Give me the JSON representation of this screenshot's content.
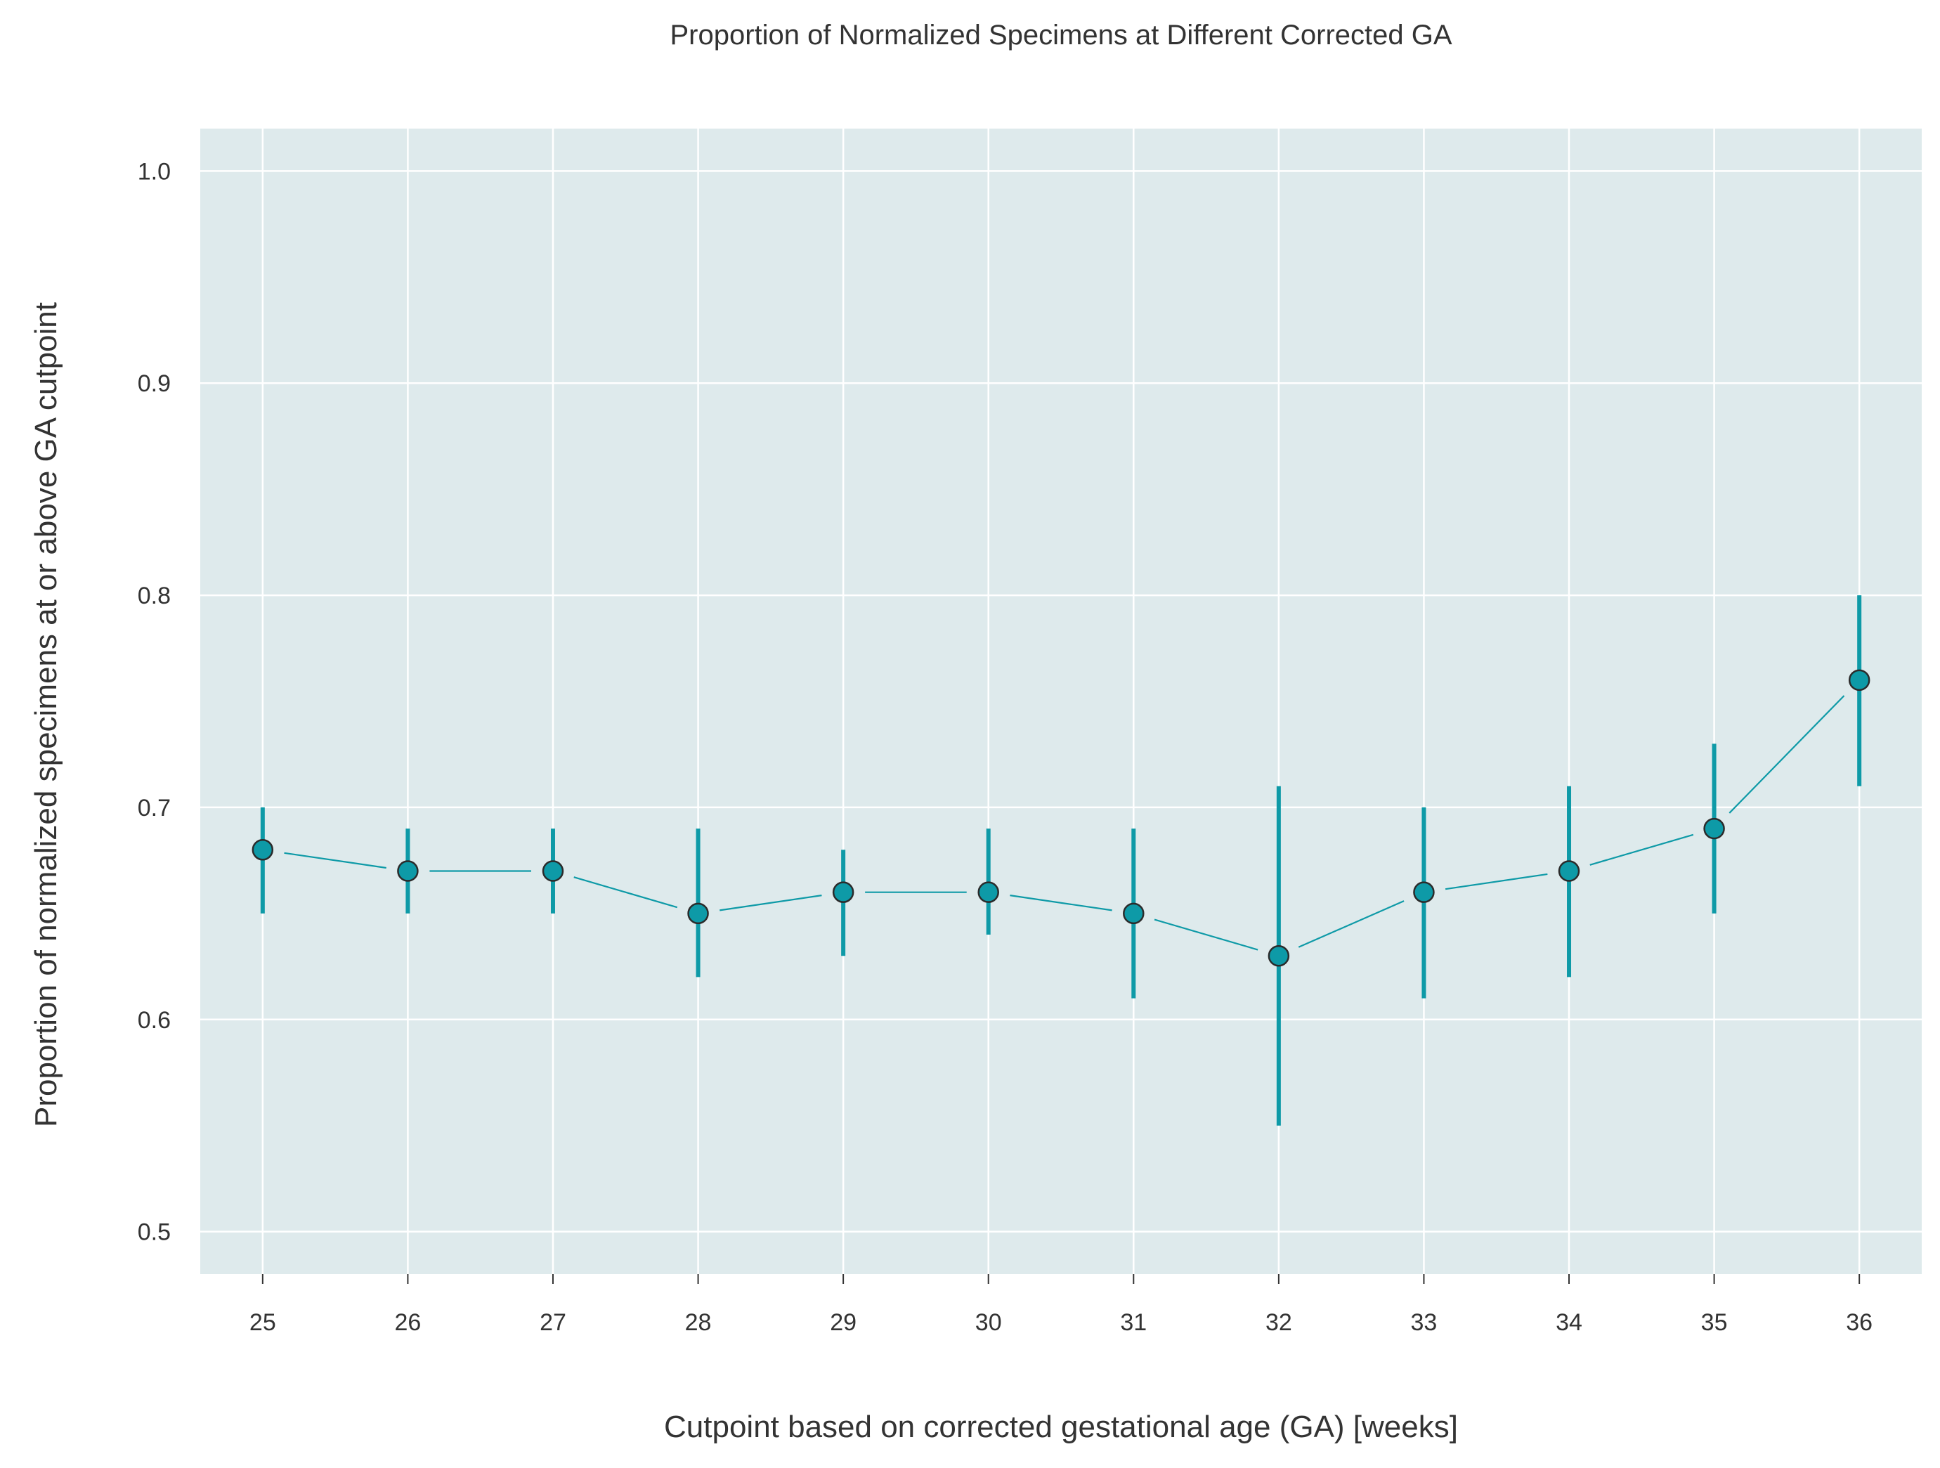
{
  "chart_data": {
    "type": "line",
    "title": "Proportion of Normalized Specimens at Different Corrected GA",
    "xlabel": "Cutpoint based on corrected gestational age (GA) [weeks]",
    "ylabel": "Proportion of normalized specimens at or above GA cutpoint",
    "x": [
      25,
      26,
      27,
      28,
      29,
      30,
      31,
      32,
      33,
      34,
      35,
      36
    ],
    "values": [
      0.68,
      0.67,
      0.67,
      0.65,
      0.66,
      0.66,
      0.65,
      0.63,
      0.66,
      0.67,
      0.69,
      0.76
    ],
    "error_low": [
      0.65,
      0.65,
      0.65,
      0.62,
      0.63,
      0.64,
      0.61,
      0.55,
      0.61,
      0.62,
      0.65,
      0.71
    ],
    "error_high": [
      0.7,
      0.69,
      0.69,
      0.69,
      0.68,
      0.69,
      0.69,
      0.71,
      0.7,
      0.71,
      0.73,
      0.8
    ],
    "xlim": [
      24.57,
      36.43
    ],
    "ylim": [
      0.48,
      1.02
    ],
    "yticks": [
      0.5,
      0.6,
      0.7,
      0.8,
      0.9,
      1.0
    ],
    "ytick_labels": [
      "0.5",
      "0.6",
      "0.7",
      "0.8",
      "0.9",
      "1.0"
    ],
    "xtick_labels": [
      "25",
      "26",
      "27",
      "28",
      "29",
      "30",
      "31",
      "32",
      "33",
      "34",
      "35",
      "36"
    ],
    "grid": true,
    "colors": {
      "series": "#0e9aa7",
      "marker_edge": "#2b2b2b",
      "plot_background": "#deeaec",
      "text": "#333333"
    }
  }
}
